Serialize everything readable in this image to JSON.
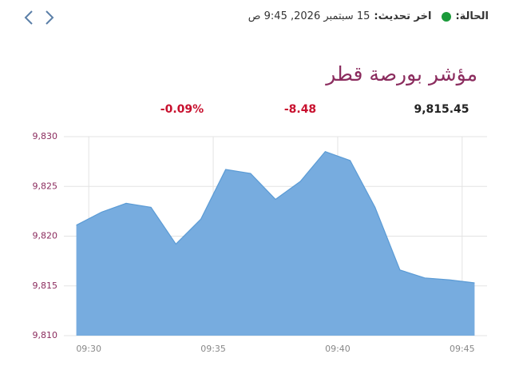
{
  "header": {
    "status_label": "الحالة:",
    "update_label": "اخر تحديث:",
    "update_time": "15 سبتمبر 2026, 9:45 ص"
  },
  "chart_data": {
    "type": "area",
    "title": "مؤشر بورصة قطر",
    "stats": [
      "9,815.45",
      "-8.48",
      "-0.09%"
    ],
    "x": [
      569.5,
      570.5,
      571.5,
      572.5,
      573.5,
      574.5,
      575.5,
      576.5,
      577.5,
      578.5,
      579.5,
      580.5,
      581.5,
      582.5,
      583.5,
      584.5,
      585.5
    ],
    "values": [
      9821.1,
      9822.4,
      9823.3,
      9822.9,
      9819.2,
      9821.7,
      9826.7,
      9826.3,
      9823.7,
      9825.5,
      9828.5,
      9827.6,
      9822.9,
      9816.6,
      9815.8,
      9815.6,
      9815.3
    ],
    "color": "#5b9bd5",
    "fill": "#77acdf",
    "xlim": [
      569,
      586
    ],
    "xticks": [
      {
        "value": 570,
        "label": "09:30"
      },
      {
        "value": 575,
        "label": "09:35"
      },
      {
        "value": 580,
        "label": "09:40"
      },
      {
        "value": 585,
        "label": "09:45"
      }
    ],
    "ylim": [
      9810,
      9830
    ],
    "yticks": [
      {
        "value": 9810,
        "label": "9,810"
      },
      {
        "value": 9815,
        "label": "9,815"
      },
      {
        "value": 9820,
        "label": "9,820"
      },
      {
        "value": 9825,
        "label": "9,825"
      },
      {
        "value": 9830,
        "label": "9,830"
      }
    ],
    "grid": true
  }
}
